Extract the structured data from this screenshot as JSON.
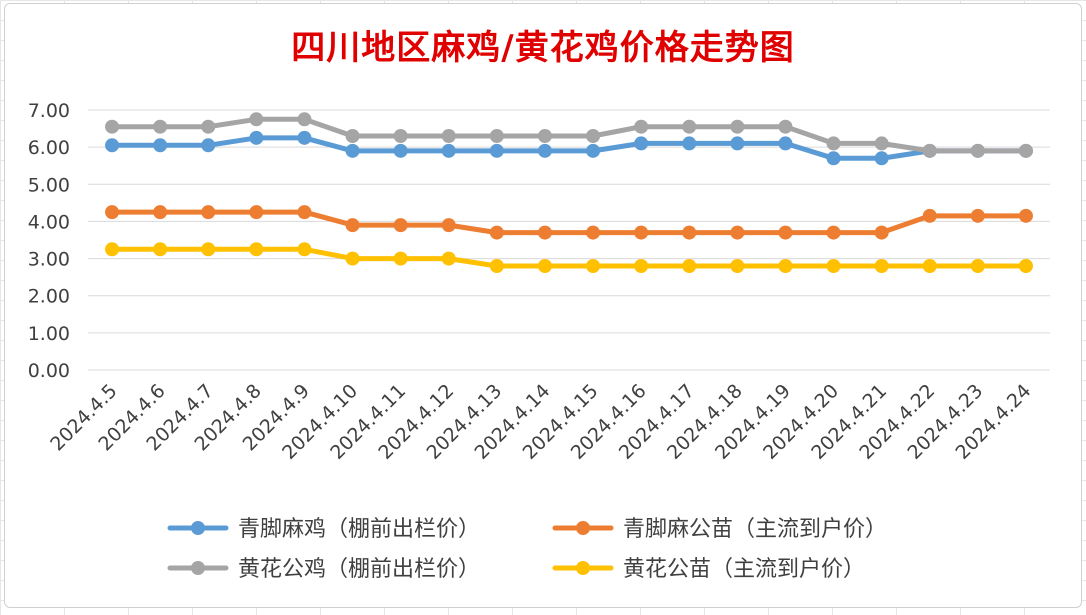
{
  "chart_data": {
    "type": "line",
    "title": "四川地区麻鸡/黄花鸡价格走势图",
    "xlabel": "",
    "ylabel": "",
    "ylim": [
      0,
      7
    ],
    "y_ticks": [
      "0.00",
      "1.00",
      "2.00",
      "3.00",
      "4.00",
      "5.00",
      "6.00",
      "7.00"
    ],
    "grid": true,
    "legend_position": "bottom",
    "categories": [
      "2024.4.5",
      "2024.4.6",
      "2024.4.7",
      "2024.4.8",
      "2024.4.9",
      "2024.4.10",
      "2024.4.11",
      "2024.4.12",
      "2024.4.13",
      "2024.4.14",
      "2024.4.15",
      "2024.4.16",
      "2024.4.17",
      "2024.4.18",
      "2024.4.19",
      "2024.4.20",
      "2024.4.21",
      "2024.4.22",
      "2024.4.23",
      "2024.4.24"
    ],
    "series": [
      {
        "name": "青脚麻鸡（棚前出栏价）",
        "color": "#5b9bd5",
        "values": [
          6.05,
          6.05,
          6.05,
          6.25,
          6.25,
          5.9,
          5.9,
          5.9,
          5.9,
          5.9,
          5.9,
          6.1,
          6.1,
          6.1,
          6.1,
          5.7,
          5.7,
          5.9,
          5.9,
          5.9
        ]
      },
      {
        "name": "青脚麻公苗（主流到户价）",
        "color": "#ed7d31",
        "values": [
          4.25,
          4.25,
          4.25,
          4.25,
          4.25,
          3.9,
          3.9,
          3.9,
          3.7,
          3.7,
          3.7,
          3.7,
          3.7,
          3.7,
          3.7,
          3.7,
          3.7,
          4.15,
          4.15,
          4.15
        ]
      },
      {
        "name": "黄花公鸡（棚前出栏价）",
        "color": "#a5a5a5",
        "values": [
          6.55,
          6.55,
          6.55,
          6.75,
          6.75,
          6.3,
          6.3,
          6.3,
          6.3,
          6.3,
          6.3,
          6.55,
          6.55,
          6.55,
          6.55,
          6.1,
          6.1,
          5.9,
          5.9,
          5.9
        ]
      },
      {
        "name": "黄花公苗（主流到户价）",
        "color": "#ffc000",
        "values": [
          3.25,
          3.25,
          3.25,
          3.25,
          3.25,
          3.0,
          3.0,
          3.0,
          2.8,
          2.8,
          2.8,
          2.8,
          2.8,
          2.8,
          2.8,
          2.8,
          2.8,
          2.8,
          2.8,
          2.8
        ]
      }
    ],
    "draw_order": [
      1,
      3,
      0,
      2
    ]
  }
}
